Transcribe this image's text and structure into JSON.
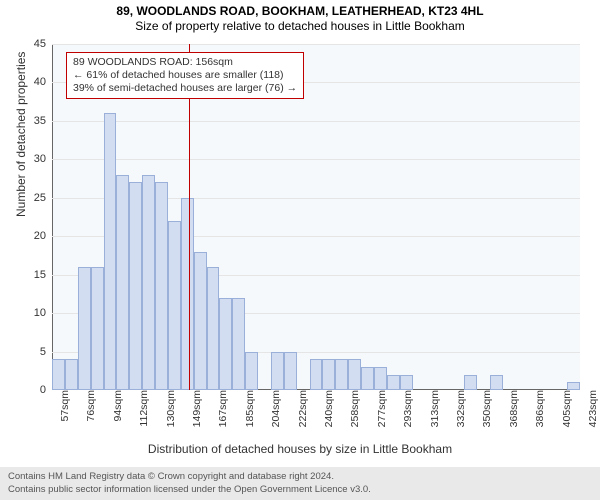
{
  "title": "89, WOODLANDS ROAD, BOOKHAM, LEATHERHEAD, KT23 4HL",
  "subtitle": "Size of property relative to detached houses in Little Bookham",
  "chart": {
    "type": "histogram",
    "background_color": "#f6f9fc",
    "grid_color": "#e5e5e5",
    "bar_fill": "#d3ddf2",
    "bar_border": "#9bb0d8",
    "marker_color": "#c00000",
    "ylabel": "Number of detached properties",
    "xlabel": "Distribution of detached houses by size in Little Bookham",
    "ylim": [
      0,
      45
    ],
    "ytick_step": 5,
    "yticks": [
      0,
      5,
      10,
      15,
      20,
      25,
      30,
      35,
      40,
      45
    ],
    "x_start": 57,
    "x_step": 9.28,
    "x_labels": [
      "57sqm",
      "76sqm",
      "94sqm",
      "112sqm",
      "130sqm",
      "149sqm",
      "167sqm",
      "185sqm",
      "204sqm",
      "222sqm",
      "240sqm",
      "258sqm",
      "277sqm",
      "293sqm",
      "313sqm",
      "332sqm",
      "350sqm",
      "368sqm",
      "386sqm",
      "405sqm",
      "423sqm"
    ],
    "bars": [
      4,
      4,
      16,
      16,
      36,
      28,
      27,
      28,
      27,
      22,
      25,
      18,
      16,
      12,
      12,
      5,
      0,
      5,
      5,
      0,
      4,
      4,
      4,
      4,
      3,
      3,
      2,
      2,
      0,
      0,
      0,
      0,
      2,
      0,
      2,
      0,
      0,
      0,
      0,
      0,
      1
    ],
    "marker_x": 156,
    "annotation": {
      "line1": "89 WOODLANDS ROAD: 156sqm",
      "line2": "← 61% of detached houses are smaller (118)",
      "line3": "39% of semi-detached houses are larger (76) →"
    }
  },
  "footer": {
    "line1": "Contains HM Land Registry data © Crown copyright and database right 2024.",
    "line2": "Contains public sector information licensed under the Open Government Licence v3.0."
  }
}
